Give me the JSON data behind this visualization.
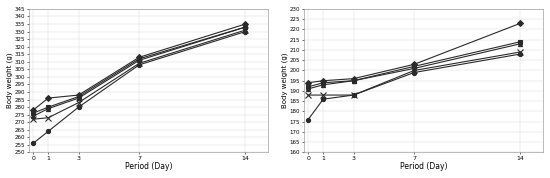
{
  "days": [
    0,
    1,
    3,
    7,
    14
  ],
  "male_series": {
    "5000": [
      278,
      286,
      288,
      313,
      335
    ],
    "2500": [
      276,
      280,
      287,
      312,
      333
    ],
    "1250": [
      274,
      279,
      286,
      311,
      333
    ],
    "625": [
      272,
      273,
      283,
      309,
      331
    ],
    "control": [
      256,
      264,
      280,
      308,
      330
    ]
  },
  "female_series": {
    "5000": [
      194,
      195,
      196,
      203,
      223
    ],
    "2500": [
      192,
      194,
      195,
      202,
      214
    ],
    "1250": [
      191,
      193,
      195,
      201,
      213
    ],
    "625": [
      188,
      188,
      188,
      200,
      209
    ],
    "control": [
      176,
      186,
      188,
      199,
      208
    ]
  },
  "male_ylim": [
    250,
    345
  ],
  "male_yticks": [
    250,
    255,
    260,
    265,
    270,
    275,
    280,
    285,
    290,
    295,
    300,
    305,
    310,
    315,
    320,
    325,
    330,
    335,
    340,
    345
  ],
  "female_ylim": [
    160,
    230
  ],
  "female_yticks": [
    160,
    165,
    170,
    175,
    180,
    185,
    190,
    195,
    200,
    205,
    210,
    215,
    220,
    225,
    230
  ],
  "xlabel": "Period (Day)",
  "ylabel": "Body weight (g)",
  "xticks": [
    0,
    1,
    3,
    7,
    14
  ],
  "bg_color": "#ffffff",
  "plot_bg_color": "#ffffff",
  "line_color": "#2a2a2a",
  "marker_styles": [
    "D",
    "s",
    "^",
    "x",
    "o"
  ],
  "marker_sizes": [
    3,
    3,
    3,
    4,
    3
  ],
  "linewidth": 0.8
}
